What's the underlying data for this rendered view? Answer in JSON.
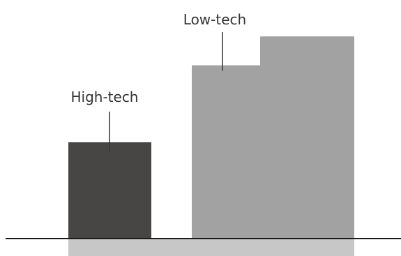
{
  "chart_data": {
    "type": "bar",
    "categories": [
      "High-tech",
      "Low-tech"
    ],
    "series": [
      {
        "values": [
          100,
          180
        ]
      },
      {
        "values": [
          null,
          210
        ]
      }
    ],
    "annotations": [
      "High-tech",
      "Low-tech"
    ],
    "title": "",
    "xlabel": "",
    "ylabel": "",
    "grid": false,
    "colors": {
      "high_tech": "#474645",
      "low_tech": "#a2a2a2",
      "baseline": "#1a1a1a",
      "under_band": "#c7c7c7"
    }
  }
}
